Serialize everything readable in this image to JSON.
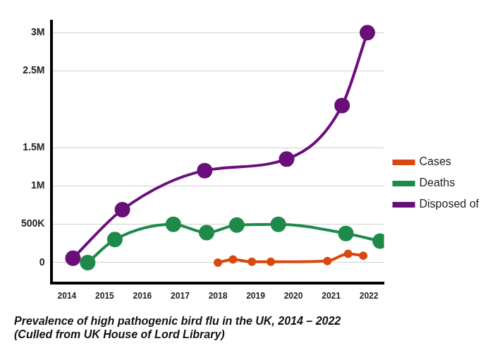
{
  "chart_data": {
    "type": "line",
    "title": "Prevalence of high pathogenic bird flu in the UK, 2014 – 2022",
    "subtitle": "(Culled from UK House of Lord Library)",
    "xlim": [
      2013.6,
      2022.4
    ],
    "xticks": [
      2014,
      2015,
      2016,
      2017,
      2018,
      2019,
      2020,
      2021,
      2022
    ],
    "ylim": [
      -270000,
      3150000
    ],
    "yticks": [
      0,
      {
        "value": 500000,
        "label": "500K"
      },
      {
        "value": 1000000,
        "label": "1M"
      },
      {
        "value": 1500000,
        "label": "1.5M"
      },
      {
        "value": 2500000,
        "label": "2.5M"
      },
      {
        "value": 3000000,
        "label": "3M"
      }
    ],
    "grid": true,
    "legend": "right",
    "series": [
      {
        "name": "Cases",
        "color": "#d9480f",
        "marker": "circle",
        "x": [
          2018,
          2018.4,
          2018.9,
          2019.4,
          2020.9,
          2021.45,
          2021.85
        ],
        "values": [
          0,
          40000,
          10000,
          10000,
          20000,
          115000,
          90000
        ]
      },
      {
        "name": "Deaths",
        "color": "#1e8a4a",
        "marker": "circle",
        "x": [
          2014.55,
          2015.27,
          2016.82,
          2017.7,
          2018.5,
          2019.6,
          2021.39,
          2022.3
        ],
        "values": [
          0,
          300000,
          500000,
          390000,
          490000,
          500000,
          380000,
          280000
        ]
      },
      {
        "name": "Disposed of",
        "color": "#6a0f7a",
        "marker": "circle",
        "x": [
          2014.16,
          2015.47,
          2017.65,
          2019.82,
          2021.29,
          2021.96
        ],
        "values": [
          57000,
          690000,
          1200000,
          1350000,
          2050000,
          3000000
        ]
      }
    ]
  }
}
